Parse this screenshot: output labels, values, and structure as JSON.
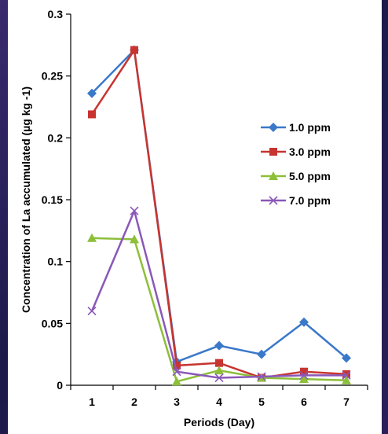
{
  "chart_data": {
    "type": "line",
    "xlabel": "Periods  (Day)",
    "ylabel": "Concentration of La accumulated  (µg kg -1)",
    "x": [
      1,
      2,
      3,
      4,
      5,
      6,
      7
    ],
    "ylim": [
      0,
      0.3
    ],
    "yticks": [
      "0",
      "0.05",
      "0.1",
      "0.15",
      "0.2",
      "0.25",
      "0.3"
    ],
    "ytick_values": [
      0,
      0.05,
      0.1,
      0.15,
      0.2,
      0.25,
      0.3
    ],
    "xticks": [
      "1",
      "2",
      "3",
      "4",
      "5",
      "6",
      "7"
    ],
    "legend_position": "right",
    "grid": false,
    "series": [
      {
        "name": "1.0 ppm",
        "color": "#3a78c9",
        "marker": "diamond",
        "values": [
          0.236,
          0.271,
          0.019,
          0.032,
          0.025,
          0.051,
          0.022
        ]
      },
      {
        "name": "3.0 ppm",
        "color": "#c8342f",
        "marker": "square",
        "values": [
          0.219,
          0.271,
          0.016,
          0.018,
          0.006,
          0.011,
          0.009
        ]
      },
      {
        "name": "5.0 ppm",
        "color": "#8dbf3a",
        "marker": "triangle",
        "values": [
          0.119,
          0.118,
          0.003,
          0.012,
          0.006,
          0.005,
          0.004
        ]
      },
      {
        "name": "7.0 ppm",
        "color": "#8a58b8",
        "marker": "x",
        "values": [
          0.06,
          0.141,
          0.011,
          0.006,
          0.007,
          0.008,
          0.008
        ]
      }
    ]
  }
}
